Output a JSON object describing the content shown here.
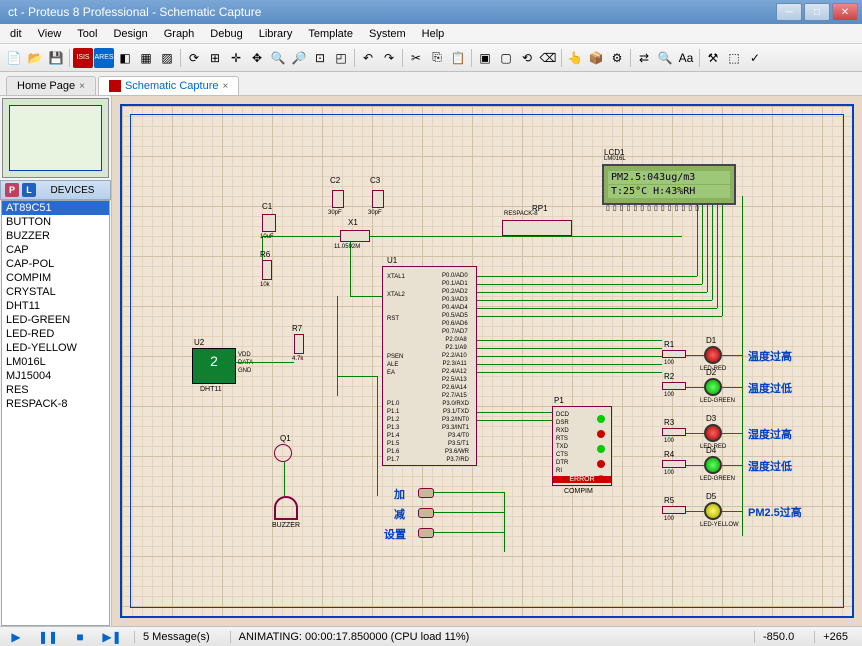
{
  "window": {
    "title": "ct - Proteus 8 Professional - Schematic Capture"
  },
  "menu": {
    "items": [
      "dit",
      "View",
      "Tool",
      "Design",
      "Graph",
      "Debug",
      "Library",
      "Template",
      "System",
      "Help"
    ]
  },
  "tabs": {
    "home": "Home Page",
    "schematic": "Schematic Capture"
  },
  "devices": {
    "header": "DEVICES",
    "list": [
      "AT89C51",
      "BUTTON",
      "BUZZER",
      "CAP",
      "CAP-POL",
      "COMPIM",
      "CRYSTAL",
      "DHT11",
      "LED-GREEN",
      "LED-RED",
      "LED-YELLOW",
      "LM016L",
      "MJ15004",
      "RES",
      "RESPACK-8"
    ],
    "selected": 0
  },
  "schematic": {
    "lcd": {
      "ref": "LCD1",
      "part": "LM016L",
      "line1": "PM2.5:043ug/m3",
      "line2": "T:25°C   H:43%RH"
    },
    "u1": {
      "ref": "U1",
      "pins_left": [
        "XTAL1",
        "XTAL2",
        "RST",
        "PSEN",
        "ALE",
        "EA"
      ],
      "port1": [
        "P1.0",
        "P1.1",
        "P1.2",
        "P1.3",
        "P1.4",
        "P1.5",
        "P1.6",
        "P1.7"
      ],
      "port0": [
        "P0.0/AD0",
        "P0.1/AD1",
        "P0.2/AD2",
        "P0.3/AD3",
        "P0.4/AD4",
        "P0.5/AD5",
        "P0.6/AD6",
        "P0.7/AD7"
      ],
      "port2": [
        "P2.0/A8",
        "P2.1/A9",
        "P2.2/A10",
        "P2.3/A11",
        "P2.4/A12",
        "P2.5/A13",
        "P2.6/A14",
        "P2.7/A15"
      ],
      "port3": [
        "P3.0/RXD",
        "P3.1/TXD",
        "P3.2/INT0",
        "P3.3/INT1",
        "P3.4/T0",
        "P3.5/T1",
        "P3.6/WR",
        "P3.7/RD"
      ]
    },
    "u2": {
      "ref": "U2",
      "part": "DHT11"
    },
    "p1": {
      "ref": "P1",
      "part": "COMPIM",
      "pins": [
        "DCD",
        "DSR",
        "RXD",
        "RTS",
        "TXD",
        "CTS",
        "DTR",
        "RI"
      ],
      "error": "ERROR"
    },
    "rp1": {
      "ref": "RP1",
      "part": "RESPACK-8"
    },
    "caps": {
      "c1": {
        "ref": "C1",
        "val": "10uF"
      },
      "c2": {
        "ref": "C2",
        "val": "30pF"
      },
      "c3": {
        "ref": "C3",
        "val": "30pF"
      }
    },
    "xtal": {
      "ref": "X1",
      "val": "11.0592M"
    },
    "resistors": {
      "r6": {
        "ref": "R6",
        "val": "10k"
      },
      "r7": {
        "ref": "R7",
        "val": "4.7k"
      },
      "r1": {
        "ref": "R1",
        "val": "100"
      },
      "r2": {
        "ref": "R2",
        "val": "100"
      },
      "r3": {
        "ref": "R3",
        "val": "100"
      },
      "r4": {
        "ref": "R4",
        "val": "100"
      },
      "r5": {
        "ref": "R5",
        "val": "100"
      }
    },
    "q1": {
      "ref": "Q1"
    },
    "buzzer": {
      "ref": "BUZZER"
    },
    "buttons": {
      "add": "加",
      "sub": "减",
      "set": "设置"
    },
    "leds": {
      "d1": {
        "ref": "D1",
        "part": "LED-RED",
        "label": "温度过高",
        "color": "red"
      },
      "d2": {
        "ref": "D2",
        "part": "LED-GREEN",
        "label": "温度过低",
        "color": "green"
      },
      "d3": {
        "ref": "D3",
        "part": "LED-RED",
        "label": "湿度过高",
        "color": "red"
      },
      "d4": {
        "ref": "D4",
        "part": "LED-GREEN",
        "label": "湿度过低",
        "color": "green"
      },
      "d5": {
        "ref": "D5",
        "part": "LED-YELLOW",
        "label": "PM2.5过高",
        "color": "yellow"
      }
    }
  },
  "status": {
    "messages": "5 Message(s)",
    "animating": "ANIMATING: 00:00:17.850000 (CPU load 11%)",
    "coord_x": "-850.0",
    "coord_y": "+265"
  },
  "colors": {
    "wire": "#008000",
    "border": "#0040c0",
    "component_outline": "#800040",
    "grid_bg": "#f0e4d4",
    "lcd_bg": "#8ab060"
  }
}
